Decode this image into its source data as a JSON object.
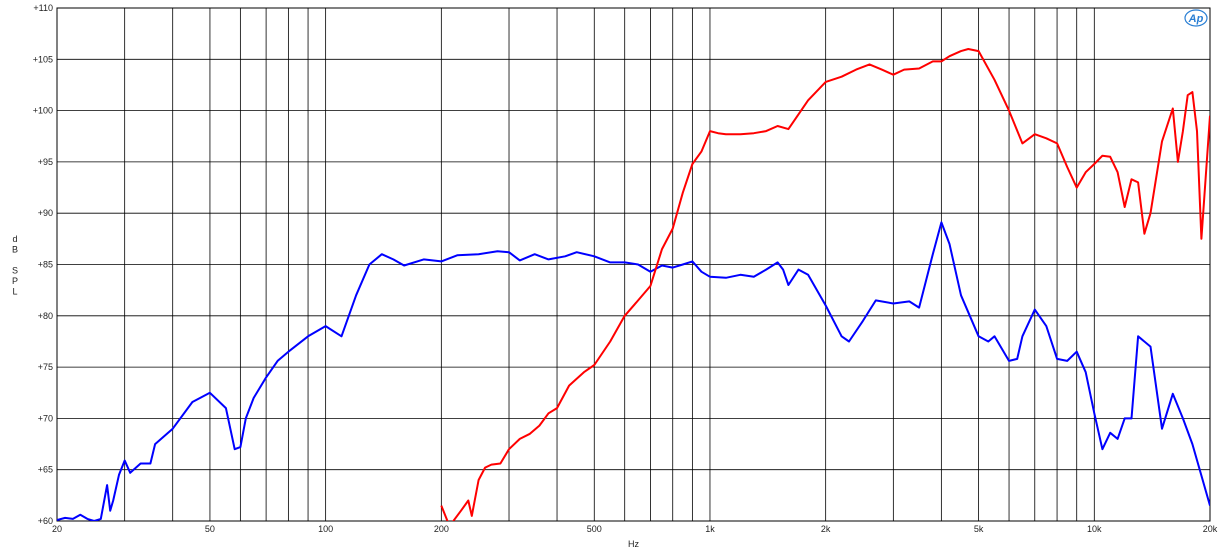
{
  "chart_data": {
    "type": "line",
    "xlabel": "Hz",
    "ylabel_lines": [
      "d",
      "B",
      "",
      "S",
      "P",
      "L"
    ],
    "x_scale": "log",
    "xlim": [
      20,
      20000
    ],
    "ylim": [
      60,
      110
    ],
    "grid": true,
    "logo": "Ap",
    "x_ticks": [
      {
        "value": 20,
        "label": "20"
      },
      {
        "value": 50,
        "label": "50"
      },
      {
        "value": 100,
        "label": "100"
      },
      {
        "value": 200,
        "label": "200"
      },
      {
        "value": 500,
        "label": "500"
      },
      {
        "value": 1000,
        "label": "1k"
      },
      {
        "value": 2000,
        "label": "2k"
      },
      {
        "value": 5000,
        "label": "5k"
      },
      {
        "value": 10000,
        "label": "10k"
      },
      {
        "value": 20000,
        "label": "20k"
      }
    ],
    "x_gridlines": [
      20,
      30,
      40,
      50,
      60,
      70,
      80,
      90,
      100,
      200,
      300,
      400,
      500,
      600,
      700,
      800,
      900,
      1000,
      2000,
      3000,
      4000,
      5000,
      6000,
      7000,
      8000,
      9000,
      10000,
      20000
    ],
    "y_ticks": [
      {
        "value": 60,
        "label": "+60"
      },
      {
        "value": 65,
        "label": "+65"
      },
      {
        "value": 70,
        "label": "+70"
      },
      {
        "value": 75,
        "label": "+75"
      },
      {
        "value": 80,
        "label": "+80"
      },
      {
        "value": 85,
        "label": "+85"
      },
      {
        "value": 90,
        "label": "+90"
      },
      {
        "value": 95,
        "label": "+95"
      },
      {
        "value": 100,
        "label": "+100"
      },
      {
        "value": 105,
        "label": "+105"
      },
      {
        "value": 110,
        "label": "+110"
      }
    ],
    "series": [
      {
        "color": "#0000ff",
        "points": [
          [
            20,
            60.1
          ],
          [
            21,
            60.3
          ],
          [
            22,
            60.2
          ],
          [
            23,
            60.6
          ],
          [
            24,
            60.2
          ],
          [
            25,
            60.0
          ],
          [
            26,
            60.2
          ],
          [
            27,
            63.5
          ],
          [
            27.5,
            61.0
          ],
          [
            28,
            62.0
          ],
          [
            29,
            64.5
          ],
          [
            30,
            65.9
          ],
          [
            31,
            64.7
          ],
          [
            33,
            65.6
          ],
          [
            35,
            65.6
          ],
          [
            36,
            67.5
          ],
          [
            40,
            69.0
          ],
          [
            45,
            71.6
          ],
          [
            50,
            72.5
          ],
          [
            55,
            71.0
          ],
          [
            58,
            67.0
          ],
          [
            60,
            67.2
          ],
          [
            62,
            70.0
          ],
          [
            65,
            72.0
          ],
          [
            70,
            74.0
          ],
          [
            75,
            75.6
          ],
          [
            80,
            76.5
          ],
          [
            90,
            78.0
          ],
          [
            100,
            79.0
          ],
          [
            110,
            78.0
          ],
          [
            120,
            82.0
          ],
          [
            130,
            85.0
          ],
          [
            140,
            86.0
          ],
          [
            150,
            85.5
          ],
          [
            160,
            84.9
          ],
          [
            180,
            85.5
          ],
          [
            200,
            85.3
          ],
          [
            220,
            85.9
          ],
          [
            250,
            86.0
          ],
          [
            280,
            86.3
          ],
          [
            300,
            86.2
          ],
          [
            320,
            85.4
          ],
          [
            350,
            86.0
          ],
          [
            380,
            85.5
          ],
          [
            420,
            85.8
          ],
          [
            450,
            86.2
          ],
          [
            500,
            85.8
          ],
          [
            550,
            85.2
          ],
          [
            600,
            85.2
          ],
          [
            650,
            85.0
          ],
          [
            700,
            84.3
          ],
          [
            750,
            84.9
          ],
          [
            800,
            84.7
          ],
          [
            850,
            85.0
          ],
          [
            900,
            85.3
          ],
          [
            950,
            84.3
          ],
          [
            1000,
            83.8
          ],
          [
            1100,
            83.7
          ],
          [
            1200,
            84.0
          ],
          [
            1300,
            83.8
          ],
          [
            1400,
            84.5
          ],
          [
            1500,
            85.2
          ],
          [
            1550,
            84.5
          ],
          [
            1600,
            83.0
          ],
          [
            1700,
            84.5
          ],
          [
            1800,
            84.0
          ],
          [
            2000,
            81.0
          ],
          [
            2200,
            78.0
          ],
          [
            2300,
            77.5
          ],
          [
            2500,
            79.5
          ],
          [
            2700,
            81.5
          ],
          [
            3000,
            81.2
          ],
          [
            3300,
            81.4
          ],
          [
            3500,
            80.8
          ],
          [
            3800,
            86.0
          ],
          [
            4000,
            89.1
          ],
          [
            4200,
            87.0
          ],
          [
            4500,
            82.0
          ],
          [
            5000,
            78.0
          ],
          [
            5300,
            77.5
          ],
          [
            5500,
            78.0
          ],
          [
            6000,
            75.6
          ],
          [
            6300,
            75.8
          ],
          [
            6500,
            78.0
          ],
          [
            7000,
            80.6
          ],
          [
            7500,
            79.0
          ],
          [
            8000,
            75.8
          ],
          [
            8500,
            75.6
          ],
          [
            9000,
            76.5
          ],
          [
            9500,
            74.5
          ],
          [
            10000,
            70.5
          ],
          [
            10500,
            67.0
          ],
          [
            11000,
            68.6
          ],
          [
            11500,
            68.0
          ],
          [
            12000,
            70.0
          ],
          [
            12500,
            70.0
          ],
          [
            13000,
            78.0
          ],
          [
            14000,
            77.0
          ],
          [
            15000,
            69.0
          ],
          [
            16000,
            72.4
          ],
          [
            17000,
            70.0
          ],
          [
            18000,
            67.5
          ],
          [
            20000,
            61.5
          ]
        ]
      },
      {
        "color": "#ff0000",
        "points": [
          [
            200,
            61.5
          ],
          [
            210,
            59.5
          ],
          [
            225,
            61.0
          ],
          [
            235,
            62.0
          ],
          [
            240,
            60.5
          ],
          [
            250,
            64.0
          ],
          [
            260,
            65.2
          ],
          [
            270,
            65.5
          ],
          [
            285,
            65.6
          ],
          [
            300,
            67.0
          ],
          [
            320,
            68.0
          ],
          [
            340,
            68.5
          ],
          [
            360,
            69.3
          ],
          [
            380,
            70.5
          ],
          [
            400,
            71.0
          ],
          [
            430,
            73.2
          ],
          [
            470,
            74.5
          ],
          [
            500,
            75.2
          ],
          [
            550,
            77.5
          ],
          [
            600,
            80.0
          ],
          [
            650,
            81.5
          ],
          [
            700,
            82.9
          ],
          [
            750,
            86.5
          ],
          [
            800,
            88.5
          ],
          [
            850,
            92.0
          ],
          [
            900,
            94.8
          ],
          [
            950,
            96.0
          ],
          [
            1000,
            98.0
          ],
          [
            1050,
            97.8
          ],
          [
            1100,
            97.7
          ],
          [
            1200,
            97.7
          ],
          [
            1300,
            97.8
          ],
          [
            1400,
            98.0
          ],
          [
            1500,
            98.5
          ],
          [
            1600,
            98.2
          ],
          [
            1800,
            101.0
          ],
          [
            2000,
            102.8
          ],
          [
            2200,
            103.3
          ],
          [
            2400,
            104.0
          ],
          [
            2600,
            104.5
          ],
          [
            2800,
            104.0
          ],
          [
            3000,
            103.5
          ],
          [
            3200,
            104.0
          ],
          [
            3500,
            104.1
          ],
          [
            3800,
            104.8
          ],
          [
            4000,
            104.8
          ],
          [
            4200,
            105.3
          ],
          [
            4500,
            105.8
          ],
          [
            4700,
            106.0
          ],
          [
            5000,
            105.8
          ],
          [
            5500,
            103.0
          ],
          [
            6000,
            100.0
          ],
          [
            6500,
            96.8
          ],
          [
            7000,
            97.7
          ],
          [
            7500,
            97.3
          ],
          [
            8000,
            96.8
          ],
          [
            8500,
            94.5
          ],
          [
            9000,
            92.5
          ],
          [
            9500,
            94.0
          ],
          [
            10000,
            94.8
          ],
          [
            10500,
            95.6
          ],
          [
            11000,
            95.5
          ],
          [
            11500,
            94.0
          ],
          [
            12000,
            90.6
          ],
          [
            12500,
            93.3
          ],
          [
            13000,
            93.0
          ],
          [
            13500,
            88.0
          ],
          [
            14000,
            90.0
          ],
          [
            15000,
            97.0
          ],
          [
            16000,
            100.2
          ],
          [
            16500,
            95.0
          ],
          [
            17000,
            98.0
          ],
          [
            17500,
            101.5
          ],
          [
            18000,
            101.8
          ],
          [
            18500,
            98.0
          ],
          [
            19000,
            87.5
          ],
          [
            20000,
            99.5
          ]
        ]
      }
    ]
  }
}
